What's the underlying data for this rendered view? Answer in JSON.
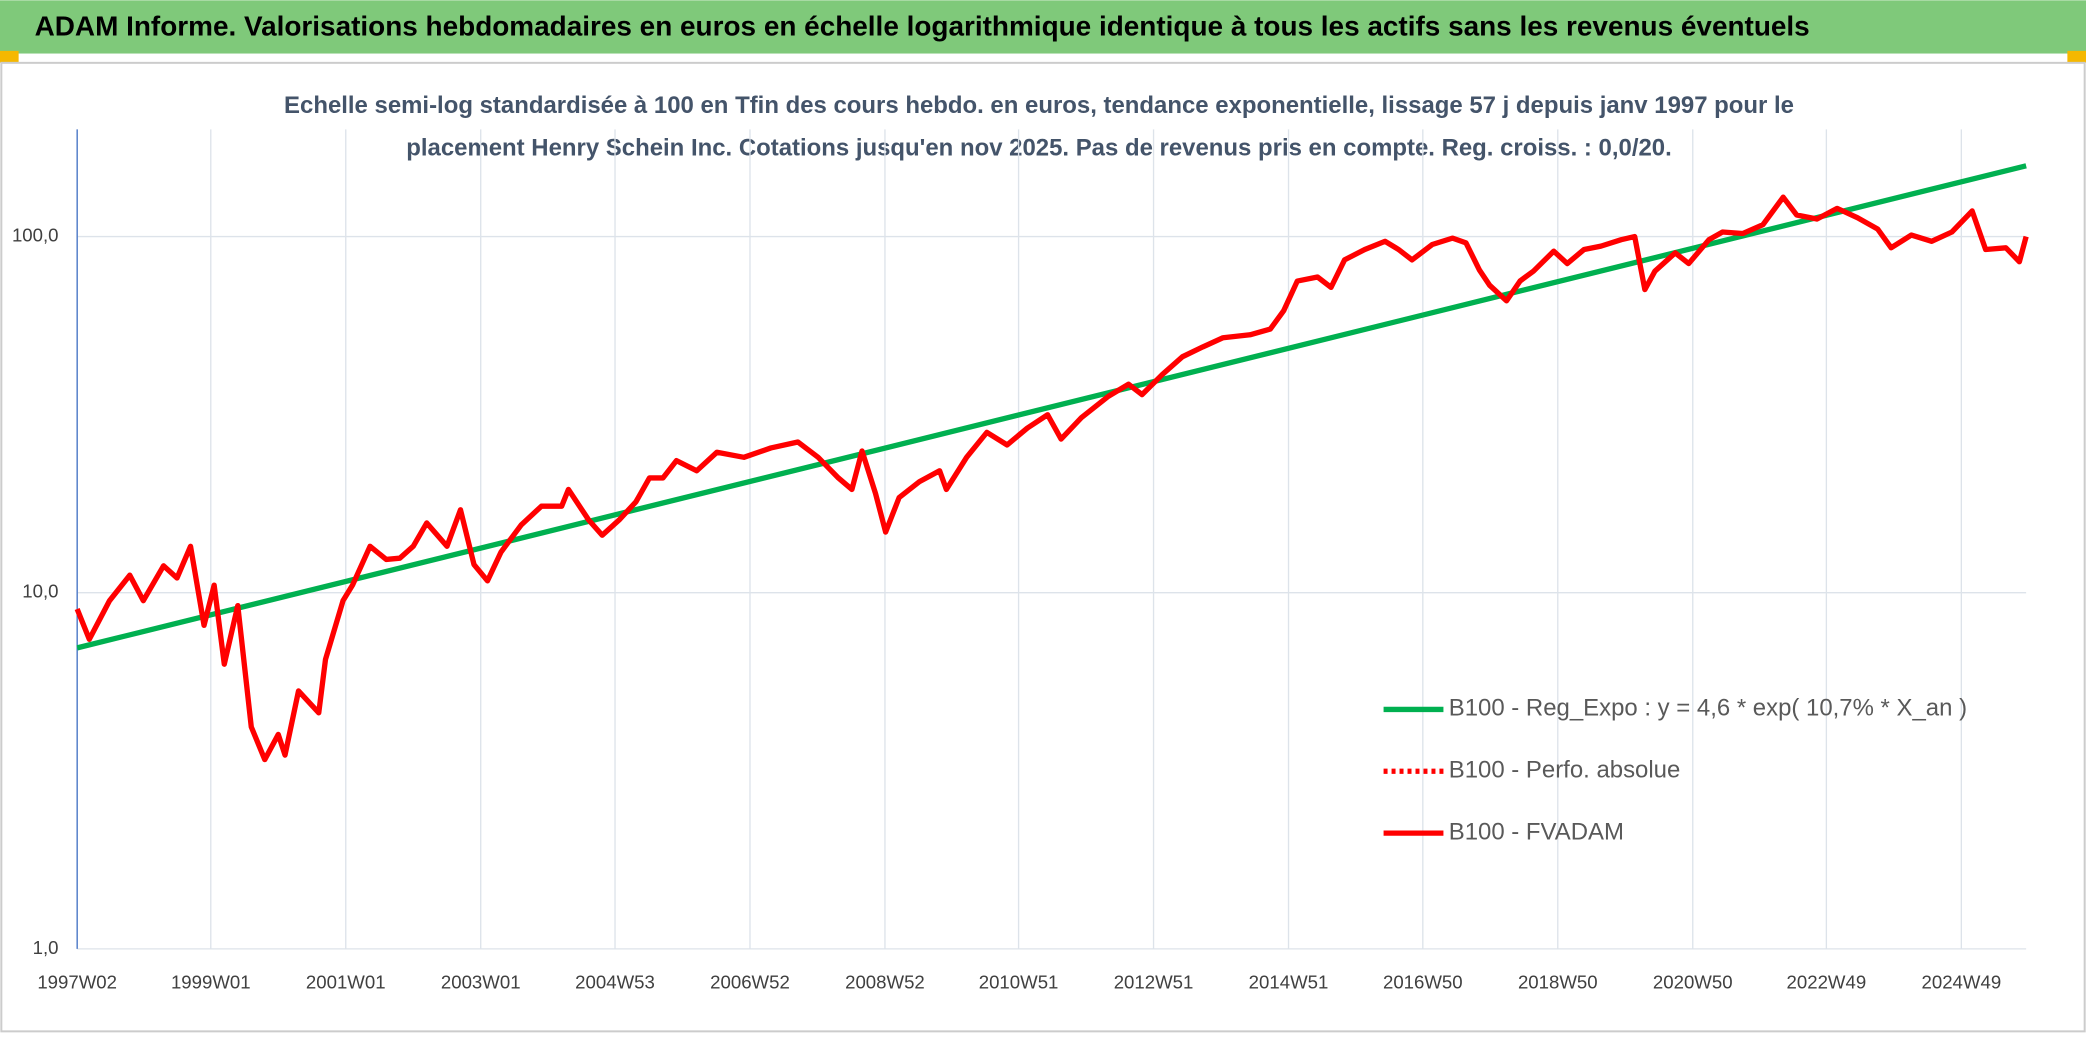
{
  "chart_data": {
    "type": "line",
    "title": "ADAM Informe. Valorisations hebdomadaires en euros en échelle logarithmique identique à tous les actifs sans les revenus éventuels",
    "subtitle": [
      "Echelle semi-log standardisée à 100 en Tfin des cours hebdo. en euros, tendance exponentielle, lissage 57 j depuis janv 1997 pour le",
      "placement Henry Schein Inc. Cotations jusqu'en nov 2025. Pas de revenus pris en compte. Reg. croiss. : 0,0/20."
    ],
    "log_y": true,
    "grid": true,
    "legend": "lower right",
    "xlim": [
      1997.02,
      2025.9
    ],
    "xticks": [
      {
        "value": 1997.02,
        "label": "1997W02"
      },
      {
        "value": 1999.0,
        "label": "1999W01"
      },
      {
        "value": 2001.0,
        "label": "2001W01"
      },
      {
        "value": 2003.0,
        "label": "2003W01"
      },
      {
        "value": 2004.99,
        "label": "2004W53"
      },
      {
        "value": 2006.99,
        "label": "2006W52"
      },
      {
        "value": 2008.99,
        "label": "2008W52"
      },
      {
        "value": 2010.97,
        "label": "2010W51"
      },
      {
        "value": 2012.97,
        "label": "2012W51"
      },
      {
        "value": 2014.97,
        "label": "2014W51"
      },
      {
        "value": 2016.96,
        "label": "2016W50"
      },
      {
        "value": 2018.96,
        "label": "2018W50"
      },
      {
        "value": 2020.96,
        "label": "2020W50"
      },
      {
        "value": 2022.94,
        "label": "2022W49"
      },
      {
        "value": 2024.94,
        "label": "2024W49"
      }
    ],
    "ylim": [
      1,
      200
    ],
    "yticks": [
      {
        "value": 1,
        "label": "1,0"
      },
      {
        "value": 10,
        "label": "10,0"
      },
      {
        "value": 100,
        "label": "100,0"
      }
    ],
    "series": [
      {
        "name": "B100 - Reg_Expo : y = 4,6 * exp( 10,7% *  X_an )",
        "color": "#00b050",
        "style": "solid",
        "x": [
          1997.02,
          2025.9
        ],
        "values": [
          7.0,
          158
        ]
      },
      {
        "name": "B100 - Perfo. absolue",
        "color": "#ff0000",
        "style": "dotted",
        "x": [],
        "values": []
      },
      {
        "name": "B100 - FVADAM",
        "color": "#ff0000",
        "style": "solid",
        "x": [
          1997.02,
          1997.2,
          1997.5,
          1997.8,
          1998.0,
          1998.3,
          1998.5,
          1998.7,
          1998.9,
          1999.05,
          1999.2,
          1999.4,
          1999.6,
          1999.8,
          2000.0,
          2000.1,
          2000.3,
          2000.6,
          2000.7,
          2000.96,
          2001.1,
          2001.36,
          2001.6,
          2001.8,
          2002.0,
          2002.2,
          2002.5,
          2002.7,
          2002.9,
          2003.1,
          2003.3,
          2003.6,
          2003.9,
          2004.2,
          2004.3,
          2004.6,
          2004.8,
          2005.05,
          2005.3,
          2005.5,
          2005.7,
          2005.9,
          2006.2,
          2006.5,
          2006.9,
          2007.3,
          2007.7,
          2008.0,
          2008.3,
          2008.5,
          2008.65,
          2008.85,
          2009.0,
          2009.2,
          2009.5,
          2009.8,
          2009.9,
          2010.2,
          2010.5,
          2010.8,
          2011.1,
          2011.4,
          2011.6,
          2011.9,
          2012.3,
          2012.6,
          2012.8,
          2013.1,
          2013.4,
          2013.7,
          2014.0,
          2014.4,
          2014.7,
          2014.9,
          2015.1,
          2015.4,
          2015.6,
          2015.8,
          2016.1,
          2016.4,
          2016.6,
          2016.8,
          2017.1,
          2017.4,
          2017.6,
          2017.8,
          2017.95,
          2018.2,
          2018.4,
          2018.6,
          2018.9,
          2019.1,
          2019.35,
          2019.6,
          2019.9,
          2020.1,
          2020.25,
          2020.4,
          2020.7,
          2020.9,
          2021.2,
          2021.4,
          2021.7,
          2022.0,
          2022.3,
          2022.5,
          2022.8,
          2023.1,
          2023.4,
          2023.7,
          2023.9,
          2024.2,
          2024.5,
          2024.8,
          2025.1,
          2025.3,
          2025.6,
          2025.8,
          2025.9
        ],
        "values": [
          9.0,
          7.4,
          9.5,
          11.2,
          9.5,
          11.9,
          11,
          13.5,
          8.1,
          10.5,
          6.3,
          9.2,
          4.2,
          3.4,
          4.0,
          3.5,
          5.3,
          4.6,
          6.5,
          9.5,
          10.5,
          13.5,
          12.4,
          12.5,
          13.5,
          15.7,
          13.5,
          17.1,
          12,
          10.8,
          13,
          15.5,
          17.5,
          17.5,
          19.5,
          16,
          14.5,
          16,
          18,
          21,
          21,
          23.5,
          22,
          24.8,
          24,
          25.5,
          26.5,
          24,
          21,
          19.5,
          25,
          19,
          14.8,
          18.5,
          20.5,
          22,
          19.5,
          24,
          28.2,
          26,
          29,
          31.6,
          27,
          31,
          35.6,
          38.5,
          36,
          41,
          46,
          49,
          52,
          53,
          55,
          62,
          75,
          77,
          72,
          86,
          92,
          97,
          92,
          86,
          95,
          99,
          96,
          80.5,
          73,
          66,
          75,
          80,
          91,
          84,
          92,
          94,
          98,
          100,
          71,
          80,
          90,
          84,
          98,
          103,
          102,
          108,
          129,
          115,
          112,
          120,
          113,
          105,
          93,
          101,
          97,
          103,
          118,
          92,
          93,
          85,
          100
        ]
      }
    ]
  }
}
